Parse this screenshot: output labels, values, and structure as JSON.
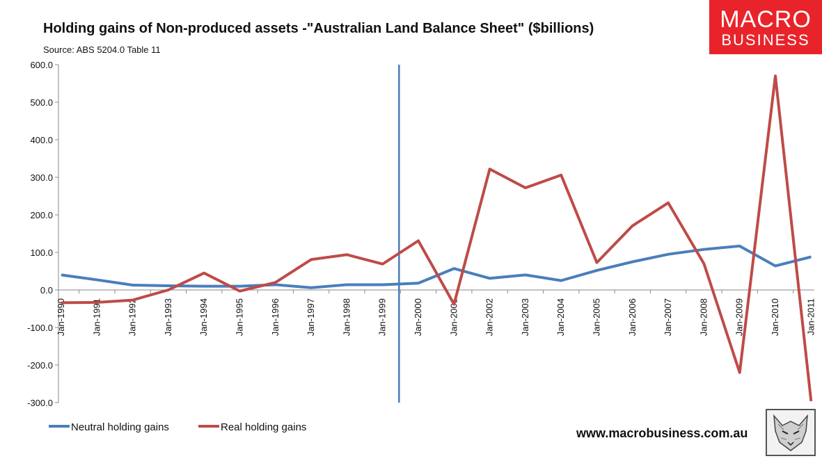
{
  "header": {
    "title": "Holding gains of Non-produced assets  -\"Australian Land Balance Sheet\" ($billions)",
    "source": "Source: ABS 5204.0 Table 11"
  },
  "branding": {
    "logo_line1": "MACRO",
    "logo_line2": "BUSINESS",
    "website": "www.macrobusiness.com.au",
    "logo_color": "#e8242a"
  },
  "chart_data": {
    "type": "line",
    "title": "Holding gains of Non-produced assets  -\"Australian Land Balance Sheet\" ($billions)",
    "xlabel": "",
    "ylabel": "",
    "ylim": [
      -300,
      600
    ],
    "yticks": [
      600,
      500,
      400,
      300,
      200,
      100,
      0,
      -100,
      -200,
      -300
    ],
    "ytick_labels": [
      "600.0",
      "500.0",
      "400.0",
      "300.0",
      "200.0",
      "100.0",
      "0.0",
      "-100.0",
      "-200.0",
      "-300.0"
    ],
    "categories": [
      "Jan-1990",
      "Jan-1991",
      "Jan-1992",
      "Jan-1993",
      "Jan-1994",
      "Jan-1995",
      "Jan-1996",
      "Jan-1997",
      "Jan-1998",
      "Jan-1999",
      "Jan-2000",
      "Jan-2001",
      "Jan-2002",
      "Jan-2003",
      "Jan-2004",
      "Jan-2005",
      "Jan-2006",
      "Jan-2007",
      "Jan-2008",
      "Jan-2009",
      "Jan-2010",
      "Jan-2011"
    ],
    "series": [
      {
        "name": "Neutral holding gains",
        "color": "#4a7ebb",
        "values": [
          40,
          27,
          13,
          11,
          10,
          10,
          14,
          6,
          14,
          14,
          18,
          57,
          31,
          40,
          25,
          52,
          75,
          95,
          108,
          117,
          64,
          88
        ]
      },
      {
        "name": "Real holding gains",
        "color": "#be4b48",
        "values": [
          -34,
          -33,
          -27,
          0,
          45,
          -3,
          20,
          81,
          94,
          69,
          131,
          -38,
          322,
          272,
          306,
          73,
          171,
          232,
          70,
          -220,
          570,
          -296
        ]
      }
    ],
    "marker_line": {
      "position_between": [
        "Jan-1999",
        "Jan-2000"
      ],
      "color": "#4a7ebb"
    },
    "legend": {
      "position": "bottom-left"
    },
    "grid": false
  }
}
